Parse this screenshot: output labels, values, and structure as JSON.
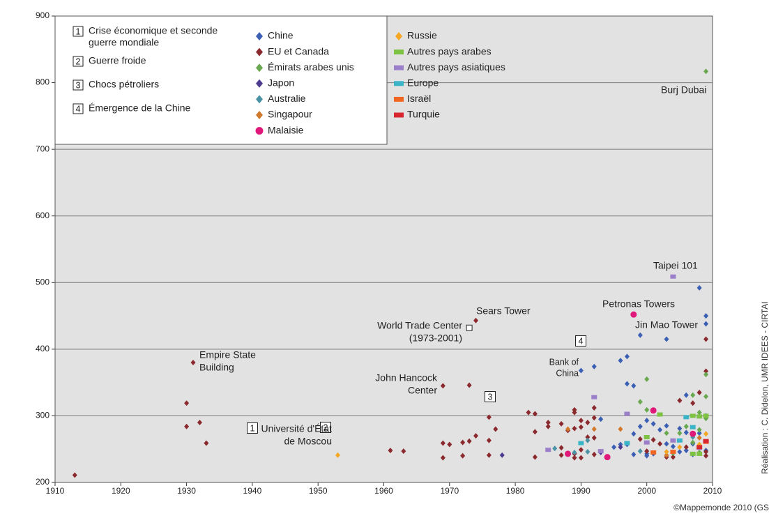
{
  "chart_data": {
    "type": "scatter",
    "xlim": [
      1910,
      2010
    ],
    "xticks": [
      1910,
      1920,
      1930,
      1940,
      1950,
      1960,
      1970,
      1980,
      1990,
      2000,
      2010
    ],
    "ylim": [
      200,
      900
    ],
    "yticks": [
      200,
      300,
      400,
      500,
      600,
      700,
      800,
      900
    ],
    "grid": true,
    "legend": "top-left",
    "periods": [
      {
        "number": "1",
        "label": [
          "Crise économique et seconde",
          "guerre mondiale"
        ]
      },
      {
        "number": "2",
        "label": [
          "Guerre froide"
        ]
      },
      {
        "number": "3",
        "label": [
          "Chocs pétroliers"
        ]
      },
      {
        "number": "4",
        "label": [
          "Émergence de la Chine"
        ]
      }
    ],
    "series": [
      {
        "name": "Chine",
        "color": "#3b5fb3",
        "marker": "diamond",
        "x": [
          2008,
          2009,
          2009,
          2003,
          1999,
          1996,
          1997,
          1998,
          1997,
          1992,
          1990,
          1993,
          1995,
          1996,
          1997,
          1998,
          1998,
          1999,
          2000,
          2000,
          2000,
          2001,
          2001,
          2002,
          2003,
          2003,
          2004,
          2005,
          2006,
          2006,
          2007,
          2008,
          2009,
          2009,
          2006,
          2005,
          2004,
          2007
        ],
        "values": [
          492,
          450,
          438,
          415,
          421,
          383,
          389,
          345,
          348,
          374,
          368,
          295,
          253,
          257,
          257,
          273,
          242,
          284,
          293,
          243,
          240,
          288,
          243,
          279,
          285,
          258,
          254,
          281,
          331,
          275,
          258,
          274,
          248,
          300,
          248,
          246,
          244,
          242
        ]
      },
      {
        "name": "EU et Canada",
        "color": "#8b2a2e",
        "marker": "diamond",
        "x": [
          1913,
          1930,
          1931,
          1930,
          1932,
          1933,
          1961,
          1963,
          1969,
          1969,
          1970,
          1972,
          1972,
          1973,
          1973,
          1969,
          1974,
          1974,
          1976,
          1976,
          1976,
          1977,
          1982,
          1983,
          1983,
          1983,
          1985,
          1985,
          1987,
          1987,
          1987,
          1988,
          1989,
          1989,
          1989,
          1989,
          1989,
          1990,
          1990,
          1990,
          1990,
          1991,
          1991,
          1992,
          1992,
          1992,
          1992,
          1999,
          2000,
          2001,
          2002,
          2003,
          2004,
          2005,
          2007,
          2008,
          2009,
          2009,
          2009,
          2006,
          2008,
          2009
        ],
        "values": [
          211,
          319,
          380,
          284,
          290,
          259,
          248,
          247,
          259,
          237,
          257,
          260,
          240,
          262,
          346,
          345,
          443,
          270,
          298,
          263,
          241,
          280,
          305,
          303,
          276,
          238,
          290,
          284,
          288,
          252,
          241,
          278,
          243,
          237,
          281,
          309,
          305,
          293,
          283,
          249,
          237,
          268,
          290,
          312,
          297,
          267,
          242,
          265,
          247,
          264,
          258,
          238,
          238,
          323,
          319,
          335,
          415,
          367,
          240,
          253,
          253,
          246
        ]
      },
      {
        "name": "Émirats arabes unis",
        "color": "#6aa84f",
        "marker": "diamond",
        "x": [
          2009,
          2000,
          1999,
          2000,
          2009,
          2009,
          2008,
          2007,
          2008,
          2007,
          2006,
          2005,
          2003,
          2004,
          2008,
          2009
        ],
        "values": [
          817,
          355,
          321,
          309,
          362,
          329,
          305,
          331,
          279,
          260,
          284,
          274,
          274,
          244,
          245,
          296
        ]
      },
      {
        "name": "Japon",
        "color": "#4b3a8f",
        "marker": "diamond",
        "x": [
          1978,
          1993,
          1996
        ],
        "values": [
          241,
          245,
          253
        ]
      },
      {
        "name": "Australie",
        "color": "#4a92a6",
        "marker": "diamond",
        "x": [
          1986,
          1989,
          1991,
          1991,
          1999,
          2007
        ],
        "values": [
          251,
          245,
          263,
          246,
          247,
          268
        ]
      },
      {
        "name": "Singapour",
        "color": "#d2782a",
        "marker": "diamond",
        "x": [
          1988,
          1992,
          1996,
          2003,
          2008
        ],
        "values": [
          280,
          280,
          280,
          241,
          267
        ]
      },
      {
        "name": "Malaisie",
        "color": "#e0187a",
        "marker": "circle",
        "x": [
          1998,
          2001,
          1988,
          1994,
          2007
        ],
        "values": [
          452,
          308,
          243,
          238,
          273
        ]
      },
      {
        "name": "Russie",
        "color": "#f5a623",
        "marker": "diamond",
        "x": [
          1953,
          2009,
          2008,
          2005,
          2003
        ],
        "values": [
          241,
          273,
          257,
          253,
          246
        ]
      },
      {
        "name": "Autres pays arabes",
        "color": "#7dc242",
        "marker": "square",
        "x": [
          2000,
          2002,
          2008,
          2009,
          2007,
          2008,
          2007
        ],
        "values": [
          268,
          302,
          299,
          300,
          243,
          243,
          300
        ]
      },
      {
        "name": "Autres pays asiatiques",
        "color": "#9b7fc9",
        "marker": "square",
        "x": [
          2004,
          1992,
          1997,
          2000,
          2004,
          2008,
          1985,
          1993
        ],
        "values": [
          509,
          328,
          303,
          260,
          263,
          252,
          249,
          247
        ]
      },
      {
        "name": "Europe",
        "color": "#3cb4c8",
        "marker": "square",
        "x": [
          1990,
          1997,
          2006,
          2007,
          2005
        ],
        "values": [
          259,
          259,
          298,
          283,
          263
        ]
      },
      {
        "name": "Israël",
        "color": "#f26522",
        "marker": "square",
        "x": [
          2001,
          2004,
          2009
        ],
        "values": [
          245,
          246,
          261
        ]
      },
      {
        "name": "Turquie",
        "color": "#d7262e",
        "marker": "square",
        "x": [
          2009,
          2008
        ],
        "values": [
          262,
          253
        ]
      }
    ],
    "annotations": [
      {
        "text": [
          "Burj Dubai"
        ]
      },
      {
        "text": [
          "Taipei 101"
        ]
      },
      {
        "text": [
          "Petronas Towers"
        ]
      },
      {
        "text": [
          "Jin Mao Tower"
        ]
      },
      {
        "text": [
          "Bank of",
          "China"
        ]
      },
      {
        "text": [
          "Sears Tower"
        ]
      },
      {
        "text": [
          "World Trade Center",
          "(1973-2001)"
        ],
        "x": 1973,
        "y": 432
      },
      {
        "text": [
          "John Hancock",
          "Center"
        ]
      },
      {
        "text": [
          "Empire State",
          "Building"
        ]
      },
      {
        "text": [
          "Université d'État",
          "de Moscou"
        ]
      }
    ],
    "credits": [
      "©Mappemonde 2010 (GS",
      "Réalisation : C. Didelon, UMR IDEES - CIRTAI"
    ]
  }
}
